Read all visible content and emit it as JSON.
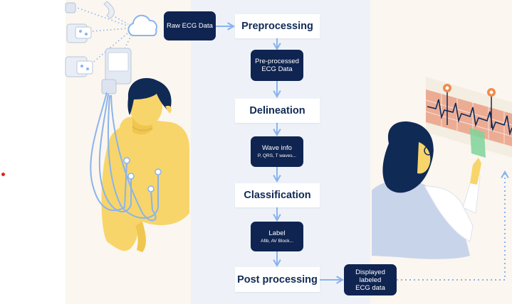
{
  "flow": {
    "steps": [
      "Preprocessing",
      "Delineation",
      "Classification",
      "Post processing"
    ],
    "raw_input": "Raw ECG Data",
    "preprocessed": [
      "Pre-processed",
      "ECG Data"
    ],
    "wave_info": {
      "title": "Wave info",
      "detail": "P, QRS, T waves..."
    },
    "label": {
      "title": "Label",
      "detail": "Afib, AV Block..."
    },
    "output": [
      "Displayed",
      "labeled",
      "ECG data"
    ]
  },
  "colors": {
    "navy": "#0f2450",
    "step_text": "#102a56",
    "arrow": "#8ab4ee",
    "skin": "#f7d56a",
    "hair": "#102a56",
    "panel_cream": "#fbf6ef",
    "panel_blue": "#eef2f8"
  },
  "icons": [
    "cloud-icon",
    "ecg-device-icon",
    "electrode-icon",
    "ecg-monitor-icon"
  ]
}
